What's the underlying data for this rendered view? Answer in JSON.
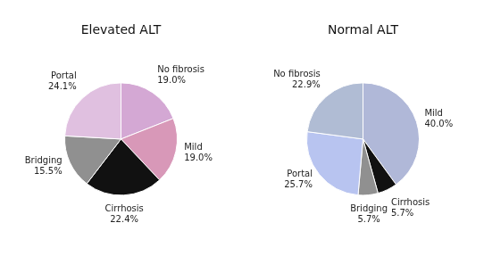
{
  "chart_data": [
    {
      "type": "pie",
      "title": "Elevated ALT",
      "categories": [
        "No fibrosis",
        "Mild",
        "Cirrhosis",
        "Bridging",
        "Portal"
      ],
      "values": [
        19.0,
        19.0,
        22.4,
        15.5,
        24.1
      ],
      "value_labels": [
        "19.0%",
        "19.0%",
        "22.4%",
        "15.5%",
        "24.1%"
      ],
      "colors": [
        "#d4a8d4",
        "#d898b8",
        "#111111",
        "#909090",
        "#e0c0e0"
      ],
      "data_labels": true
    },
    {
      "type": "pie",
      "title": "Normal ALT",
      "categories": [
        "Mild",
        "Cirrhosis",
        "Bridging",
        "Portal",
        "No fibrosis"
      ],
      "values": [
        40.0,
        5.7,
        5.7,
        25.7,
        22.9
      ],
      "value_labels": [
        "40.0%",
        "5.7%",
        "5.7%",
        "25.7%",
        "22.9%"
      ],
      "colors": [
        "#b0b8d8",
        "#111111",
        "#909090",
        "#b8c4f0",
        "#b0bcd4"
      ],
      "data_labels": true
    }
  ]
}
